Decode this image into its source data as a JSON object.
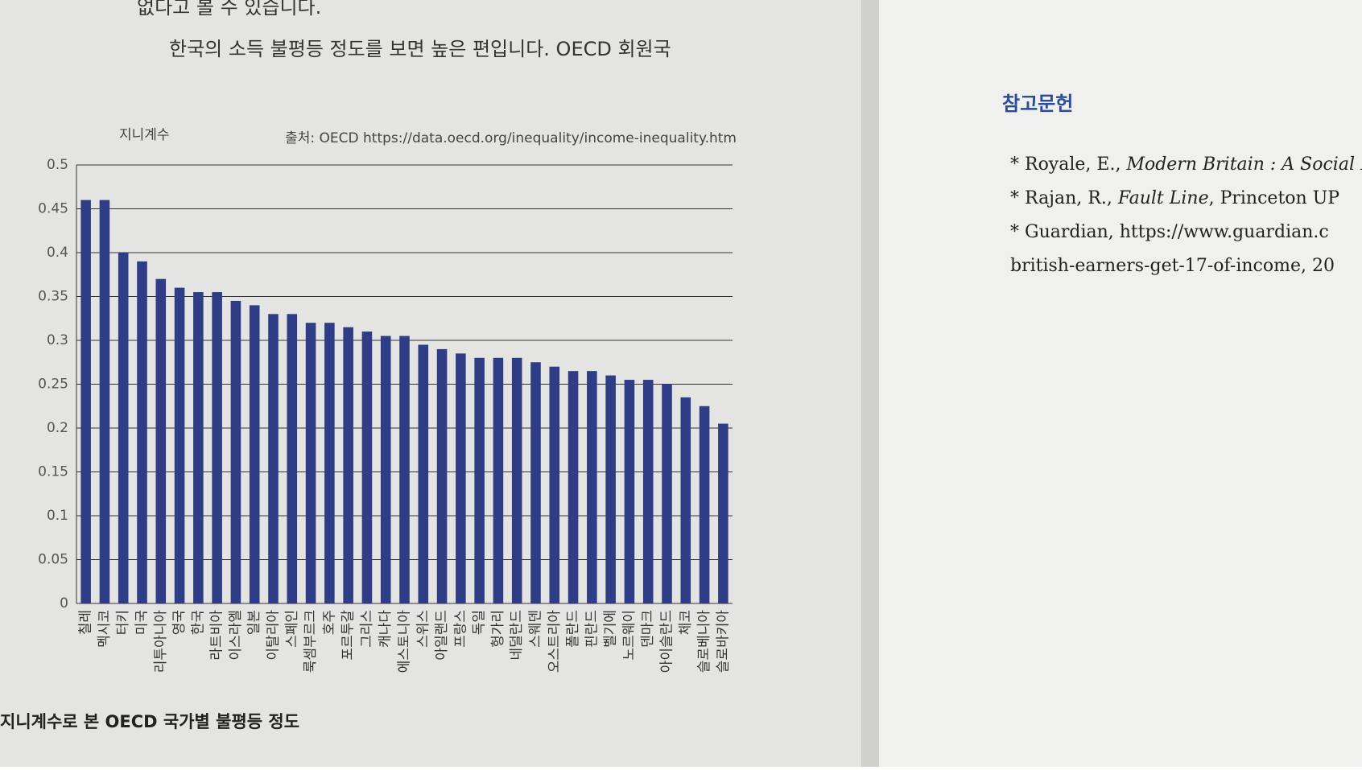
{
  "page": {
    "body_lines": [
      "없다고 볼 수 있습니다.",
      "한국의 소득 불평등 정도를 보면 높은 편입니다. OECD 회원국"
    ],
    "references": {
      "heading": "참고문헌",
      "items": [
        {
          "lead": "Royale, E., ",
          "title": "Modern Britain : A Social H"
        },
        {
          "lead": "Rajan, R., ",
          "title": "Fault Line",
          "tail": ", Princeton UP"
        },
        {
          "lead": "Guardian, https://www.guardian.c"
        },
        {
          "lead": "british-earners-get-17-of-income, 20"
        }
      ]
    }
  },
  "chart_data": {
    "type": "bar",
    "title": "지니계수로 본 OECD 국가별 불평등 정도",
    "y_label": "지니계수",
    "source": "출처: OECD  https://data.oecd.org/inequality/income-inequality.htm",
    "categories": [
      "칠레",
      "멕시코",
      "터키",
      "미국",
      "리투아니아",
      "영국",
      "한국",
      "라트비아",
      "이스라엘",
      "일본",
      "이탈리아",
      "스페인",
      "룩셈부르크",
      "호주",
      "포르투갈",
      "그리스",
      "캐나다",
      "에스토니아",
      "스위스",
      "아일랜드",
      "프랑스",
      "독일",
      "헝가리",
      "네덜란드",
      "스웨덴",
      "오스트리아",
      "폴란드",
      "핀란드",
      "벨기에",
      "노르웨이",
      "덴마크",
      "아이슬란드",
      "체코",
      "슬로베니아",
      "슬로바키아"
    ],
    "values": [
      0.46,
      0.46,
      0.4,
      0.39,
      0.37,
      0.36,
      0.355,
      0.355,
      0.345,
      0.34,
      0.33,
      0.33,
      0.32,
      0.32,
      0.315,
      0.31,
      0.305,
      0.305,
      0.295,
      0.29,
      0.285,
      0.28,
      0.28,
      0.28,
      0.275,
      0.27,
      0.265,
      0.265,
      0.26,
      0.255,
      0.255,
      0.25,
      0.235,
      0.225,
      0.205
    ],
    "color": "#2f3d86",
    "ylim": [
      0,
      0.5
    ],
    "yticks": [
      0,
      0.05,
      0.1,
      0.15,
      0.2,
      0.25,
      0.3,
      0.35,
      0.4,
      0.45,
      0.5
    ],
    "grid": true
  }
}
